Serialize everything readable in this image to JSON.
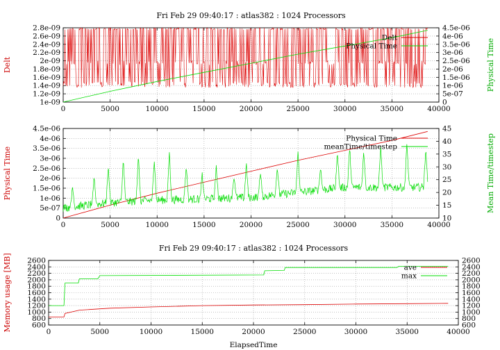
{
  "charts": [
    {
      "title": "Fri Feb 29 09:40:17 : atlas382 : 1024 Processors",
      "ylabel_left": "Delt",
      "ylabel_right": "Physical Time",
      "xlabel": "",
      "left_ticks": [
        "1e-09",
        "1.2e-09",
        "1.4e-09",
        "1.6e-09",
        "1.8e-09",
        "2e-09",
        "2.2e-09",
        "2.4e-09",
        "2.6e-09",
        "2.8e-09"
      ],
      "right_ticks": [
        "0",
        "5e-07",
        "1e-06",
        "1.5e-06",
        "2e-06",
        "2.5e-06",
        "3e-06",
        "3.5e-06",
        "4e-06",
        "4.5e-06"
      ],
      "x_ticks": [
        "0",
        "5000",
        "10000",
        "15000",
        "20000",
        "25000",
        "30000",
        "35000",
        "40000"
      ],
      "legend": [
        "Delt",
        "Physical Time"
      ]
    },
    {
      "title": "",
      "ylabel_left": "Physical Time",
      "ylabel_right": "Mean Time/timestep",
      "xlabel": "",
      "left_ticks": [
        "0",
        "5e-07",
        "1e-06",
        "1.5e-06",
        "2e-06",
        "2.5e-06",
        "3e-06",
        "3.5e-06",
        "4e-06",
        "4.5e-06"
      ],
      "right_ticks": [
        "10",
        "15",
        "20",
        "25",
        "30",
        "35",
        "40",
        "45"
      ],
      "x_ticks": [
        "0",
        "5000",
        "10000",
        "15000",
        "20000",
        "25000",
        "30000",
        "35000",
        "40000"
      ],
      "legend": [
        "Physical Time",
        "meanTime/timestep"
      ]
    },
    {
      "title": "Fri Feb 29 09:40:17 : atlas382 : 1024 Processors",
      "ylabel_left": "Memory usage [MB]",
      "ylabel_right": "",
      "xlabel": "ElapsedTime",
      "left_ticks": [
        "600",
        "800",
        "1000",
        "1200",
        "1400",
        "1600",
        "1800",
        "2000",
        "2200",
        "2400",
        "2600"
      ],
      "right_ticks": [
        "600",
        "800",
        "1000",
        "1200",
        "1400",
        "1600",
        "1800",
        "2000",
        "2200",
        "2400",
        "2600"
      ],
      "x_ticks": [
        "0",
        "5000",
        "10000",
        "15000",
        "20000",
        "25000",
        "30000",
        "35000",
        "40000"
      ],
      "legend": [
        "ave",
        "max"
      ]
    }
  ],
  "colors": {
    "red": "#dd0000",
    "green": "#00dd00",
    "grid": "#9a9a9a"
  },
  "chart_data": [
    {
      "type": "line",
      "title": "Fri Feb 29 09:40:17 : atlas382 : 1024 Processors",
      "xlabel": "",
      "ylabel": "Delt",
      "y2label": "Physical Time",
      "xlim": [
        0,
        40000
      ],
      "ylim": [
        1e-09,
        2.8e-09
      ],
      "y2lim": [
        0,
        4.5e-06
      ],
      "grid": true,
      "legend_position": "top-right",
      "series": [
        {
          "name": "Delt",
          "axis": "left",
          "style": "noisy-oscillation",
          "x_range": [
            0,
            38800
          ],
          "band": [
            1.35e-09,
            2.8e-09
          ],
          "typical": [
            1.9e-09,
            2e-09
          ]
        },
        {
          "name": "Physical Time",
          "axis": "right",
          "x": [
            0,
            5000,
            10000,
            15000,
            20000,
            25000,
            30000,
            35000,
            38800
          ],
          "y": [
            0,
            6.5e-07,
            1.25e-06,
            1.8e-06,
            2.35e-06,
            2.9e-06,
            3.4e-06,
            3.9e-06,
            4.35e-06
          ]
        }
      ]
    },
    {
      "type": "line",
      "title": "",
      "xlabel": "",
      "ylabel": "Physical Time",
      "y2label": "Mean Time/timestep",
      "xlim": [
        0,
        40000
      ],
      "ylim": [
        0,
        4.5e-06
      ],
      "y2lim": [
        10,
        45
      ],
      "grid": true,
      "legend_position": "top-right",
      "series": [
        {
          "name": "Physical Time",
          "axis": "left",
          "x": [
            0,
            5000,
            10000,
            15000,
            20000,
            25000,
            30000,
            35000,
            38800
          ],
          "y": [
            0,
            6.5e-07,
            1.25e-06,
            1.8e-06,
            2.35e-06,
            2.9e-06,
            3.4e-06,
            3.9e-06,
            4.35e-06
          ]
        },
        {
          "name": "meanTime/timestep",
          "axis": "right",
          "x": [
            0,
            5000,
            10000,
            15000,
            20000,
            25000,
            30000,
            35000,
            38800
          ],
          "y": [
            14,
            16,
            17,
            17.5,
            18,
            20,
            22,
            22,
            22
          ],
          "spikes": [
            {
              "x": 1000,
              "y": 22
            },
            {
              "x": 3300,
              "y": 26
            },
            {
              "x": 4800,
              "y": 30
            },
            {
              "x": 6400,
              "y": 33
            },
            {
              "x": 8000,
              "y": 35
            },
            {
              "x": 9700,
              "y": 33
            },
            {
              "x": 11300,
              "y": 36
            },
            {
              "x": 13100,
              "y": 31
            },
            {
              "x": 14800,
              "y": 27
            },
            {
              "x": 16300,
              "y": 30
            },
            {
              "x": 18200,
              "y": 27
            },
            {
              "x": 19500,
              "y": 31
            },
            {
              "x": 21000,
              "y": 28
            },
            {
              "x": 22800,
              "y": 30
            },
            {
              "x": 25000,
              "y": 36
            },
            {
              "x": 27400,
              "y": 30
            },
            {
              "x": 29200,
              "y": 36
            },
            {
              "x": 30500,
              "y": 38
            },
            {
              "x": 32000,
              "y": 36
            },
            {
              "x": 33800,
              "y": 38
            },
            {
              "x": 36600,
              "y": 40
            },
            {
              "x": 38600,
              "y": 37
            }
          ]
        }
      ]
    },
    {
      "type": "line",
      "title": "Fri Feb 29 09:40:17 : atlas382 : 1024 Processors",
      "xlabel": "ElapsedTime",
      "ylabel": "Memory usage [MB]",
      "xlim": [
        0,
        40000
      ],
      "ylim": [
        600,
        2600
      ],
      "y2lim": [
        600,
        2600
      ],
      "grid": true,
      "legend_position": "top-right",
      "series": [
        {
          "name": "ave",
          "axis": "left",
          "x": [
            0,
            1500,
            1600,
            3000,
            4500,
            6000,
            10000,
            15000,
            20000,
            25000,
            30000,
            35000,
            39000
          ],
          "y": [
            850,
            850,
            960,
            1060,
            1090,
            1120,
            1160,
            1200,
            1220,
            1230,
            1250,
            1260,
            1270
          ]
        },
        {
          "name": "max",
          "axis": "left",
          "x": [
            0,
            1500,
            1600,
            2900,
            3000,
            4800,
            5000,
            21000,
            21100,
            23000,
            23100,
            34000,
            34200,
            39000
          ],
          "y": [
            1200,
            1200,
            1900,
            1900,
            2030,
            2030,
            2130,
            2150,
            2280,
            2290,
            2380,
            2380,
            2420,
            2420
          ]
        }
      ]
    }
  ]
}
